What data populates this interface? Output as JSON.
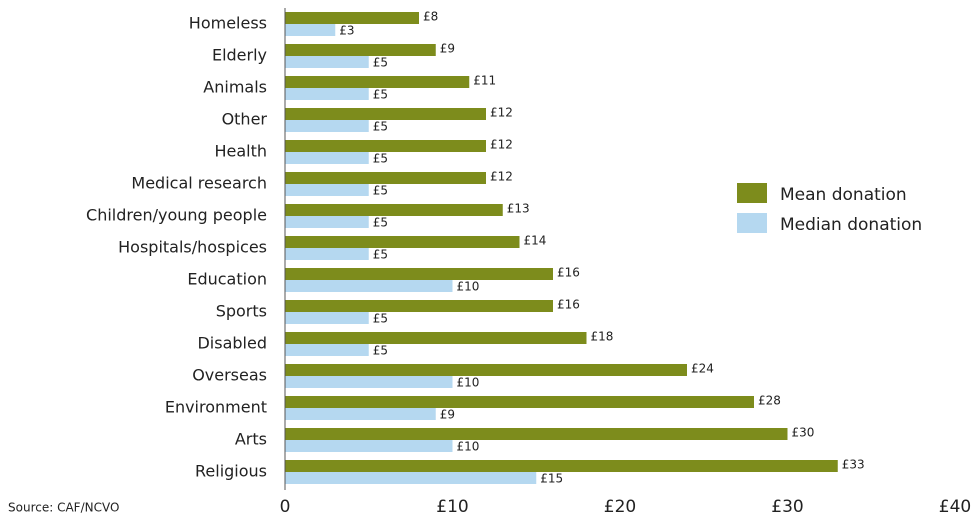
{
  "chart_data": {
    "type": "bar",
    "orientation": "horizontal",
    "source": "Source: CAF/NCVO",
    "categories": [
      "Homeless",
      "Elderly",
      "Animals",
      "Other",
      "Health",
      "Medical research",
      "Children/young people",
      "Hospitals/hospices",
      "Education",
      "Sports",
      "Disabled",
      "Overseas",
      "Environment",
      "Arts",
      "Religious"
    ],
    "series": [
      {
        "name": "Mean donation",
        "color": "#7d8c1c",
        "values": [
          8,
          9,
          11,
          12,
          12,
          12,
          13,
          14,
          16,
          16,
          18,
          24,
          28,
          30,
          33
        ],
        "value_labels": [
          "£8",
          "£9",
          "£11",
          "£12",
          "£12",
          "£12",
          "£13",
          "£14",
          "£16",
          "£16",
          "£18",
          "£24",
          "£28",
          "£30",
          "£33"
        ]
      },
      {
        "name": "Median donation",
        "color": "#b5d8f0",
        "values": [
          3,
          5,
          5,
          5,
          5,
          5,
          5,
          5,
          10,
          5,
          5,
          10,
          9,
          10,
          15
        ],
        "value_labels": [
          "£3",
          "£5",
          "£5",
          "£5",
          "£5",
          "£5",
          "£5",
          "£5",
          "£10",
          "£5",
          "£5",
          "£10",
          "£9",
          "£10",
          "£15"
        ]
      }
    ],
    "xlim": [
      0,
      40
    ],
    "xticks": [
      0,
      {
        "value": 10,
        "label": "£10"
      },
      {
        "value": 20,
        "label": "£20"
      },
      {
        "value": 30,
        "label": "£30"
      },
      {
        "value": 40,
        "label": "£40"
      }
    ],
    "legend": "right"
  }
}
